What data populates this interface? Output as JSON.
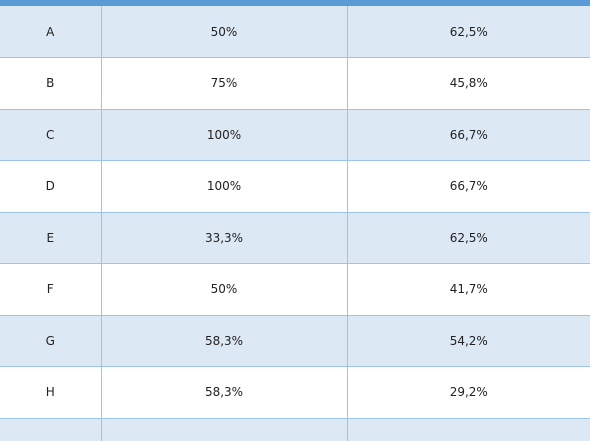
{
  "table": {
    "rows": [
      {
        "label": "A",
        "col2": "50%",
        "col3": "62,5%"
      },
      {
        "label": "B",
        "col2": "75%",
        "col3": "45,8%"
      },
      {
        "label": "C",
        "col2": "100%",
        "col3": "66,7%"
      },
      {
        "label": "D",
        "col2": "100%",
        "col3": "66,7%"
      },
      {
        "label": "E",
        "col2": "33,3%",
        "col3": "62,5%"
      },
      {
        "label": "F",
        "col2": "50%",
        "col3": "41,7%"
      },
      {
        "label": "G",
        "col2": "58,3%",
        "col3": "54,2%"
      },
      {
        "label": "H",
        "col2": "58,3%",
        "col3": "29,2%"
      }
    ]
  },
  "colors": {
    "header_bar": "#5b9bd5",
    "band_fill": "#dde8f5",
    "grid_line": "#9dc3e6"
  }
}
